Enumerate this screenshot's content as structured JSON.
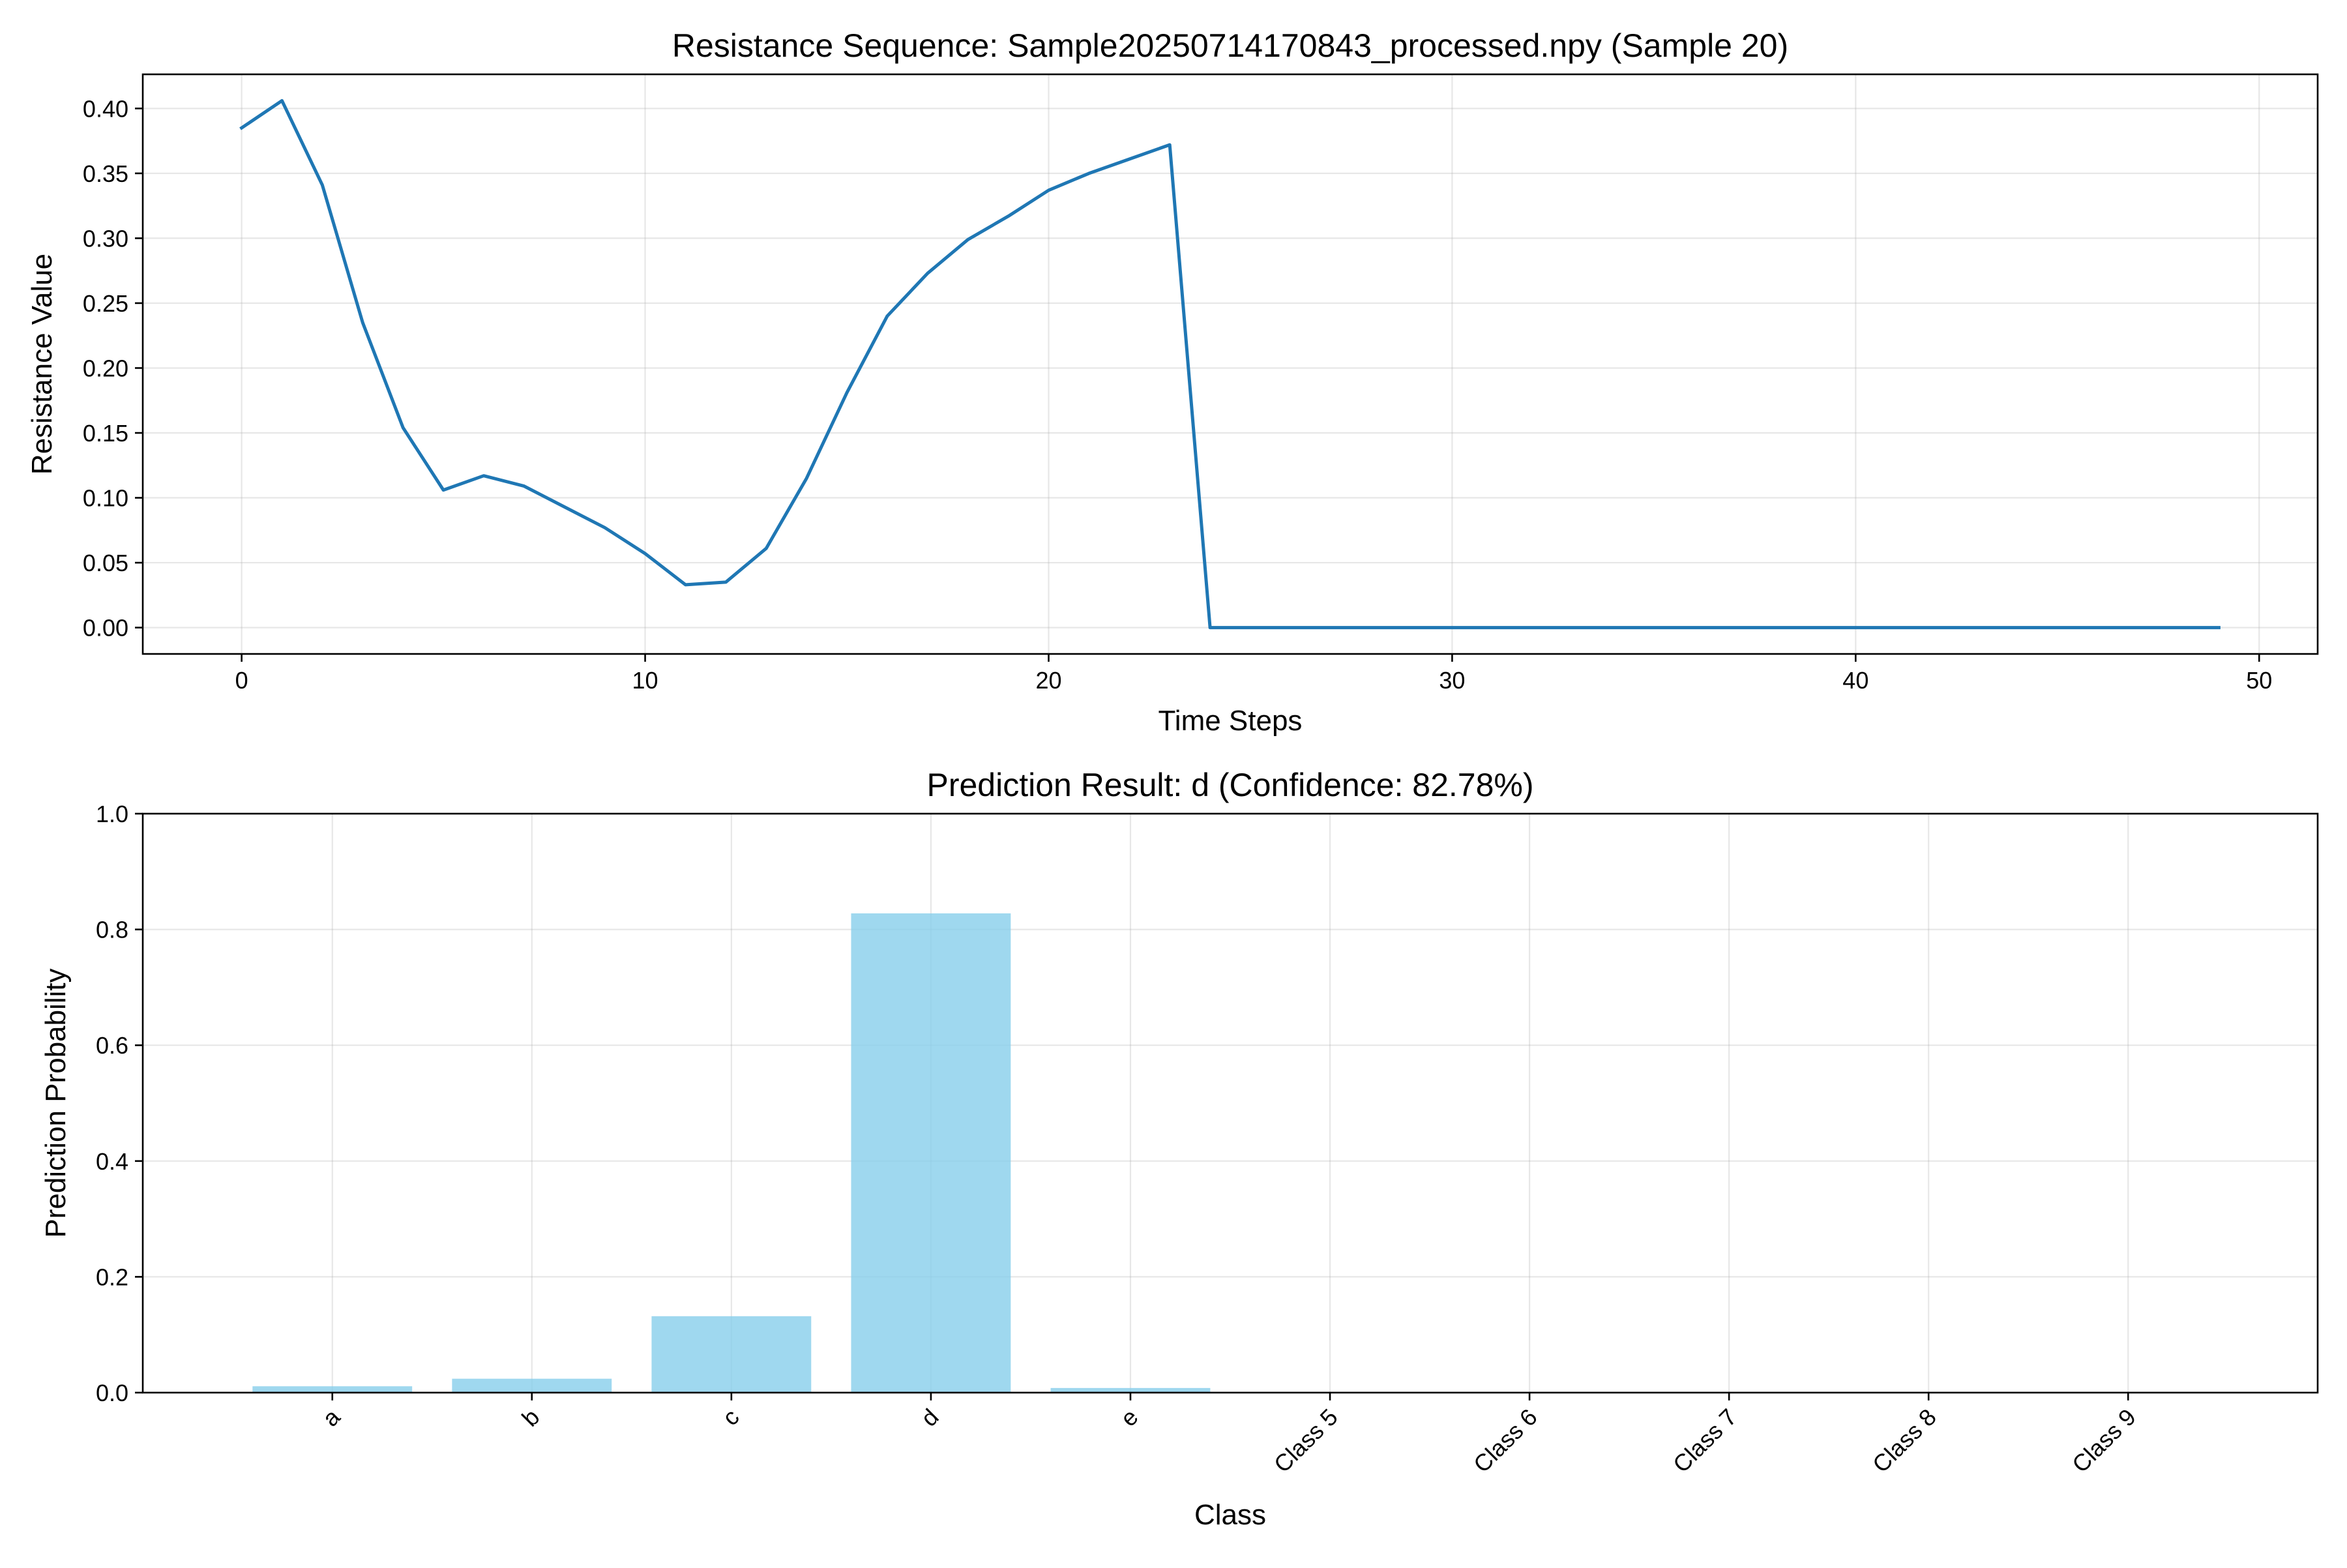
{
  "chart_data": [
    {
      "type": "line",
      "title": "Resistance Sequence: Sample20250714170843_processed.npy (Sample 20)",
      "xlabel": "Time Steps",
      "ylabel": "Resistance Value",
      "xlim": [
        -2.45,
        51.45
      ],
      "ylim": [
        -0.0203,
        0.4263
      ],
      "xticks": [
        0,
        10,
        20,
        30,
        40,
        50
      ],
      "xtick_labels": [
        "0",
        "10",
        "20",
        "30",
        "40",
        "50"
      ],
      "yticks": [
        0.0,
        0.05,
        0.1,
        0.15,
        0.2,
        0.25,
        0.3,
        0.35,
        0.4
      ],
      "ytick_labels": [
        "0.00",
        "0.05",
        "0.10",
        "0.15",
        "0.20",
        "0.25",
        "0.30",
        "0.35",
        "0.40"
      ],
      "grid": true,
      "color": "#1f77b4",
      "x": [
        0,
        1,
        2,
        3,
        4,
        5,
        6,
        7,
        8,
        9,
        10,
        11,
        12,
        13,
        14,
        15,
        16,
        17,
        18,
        19,
        20,
        21,
        22,
        23,
        24,
        25,
        26,
        27,
        28,
        29,
        30,
        31,
        32,
        33,
        34,
        35,
        36,
        37,
        38,
        39,
        40,
        41,
        42,
        43,
        44,
        45,
        46,
        47,
        48,
        49
      ],
      "y": [
        0.385,
        0.406,
        0.341,
        0.235,
        0.154,
        0.106,
        0.117,
        0.109,
        0.093,
        0.077,
        0.057,
        0.033,
        0.035,
        0.061,
        0.115,
        0.181,
        0.24,
        0.273,
        0.299,
        0.317,
        0.337,
        0.35,
        0.361,
        0.372,
        0.0,
        0,
        0,
        0,
        0,
        0,
        0,
        0,
        0,
        0,
        0,
        0,
        0,
        0,
        0,
        0,
        0,
        0,
        0,
        0,
        0,
        0,
        0,
        0,
        0,
        0
      ]
    },
    {
      "type": "bar",
      "title": "Prediction Result: d (Confidence: 82.78%)",
      "xlabel": "Class",
      "ylabel": "Prediction Probability",
      "ylim": [
        0,
        1.0
      ],
      "yticks": [
        0.0,
        0.2,
        0.4,
        0.6,
        0.8,
        1.0
      ],
      "ytick_labels": [
        "0.0",
        "0.2",
        "0.4",
        "0.6",
        "0.8",
        "1.0"
      ],
      "grid": true,
      "color": "#87ceeb",
      "categories": [
        "a",
        "b",
        "c",
        "d",
        "e",
        "Class 5",
        "Class 6",
        "Class 7",
        "Class 8",
        "Class 9"
      ],
      "values": [
        0.011,
        0.024,
        0.132,
        0.8278,
        0.008,
        0,
        0,
        0,
        0,
        0
      ]
    }
  ]
}
